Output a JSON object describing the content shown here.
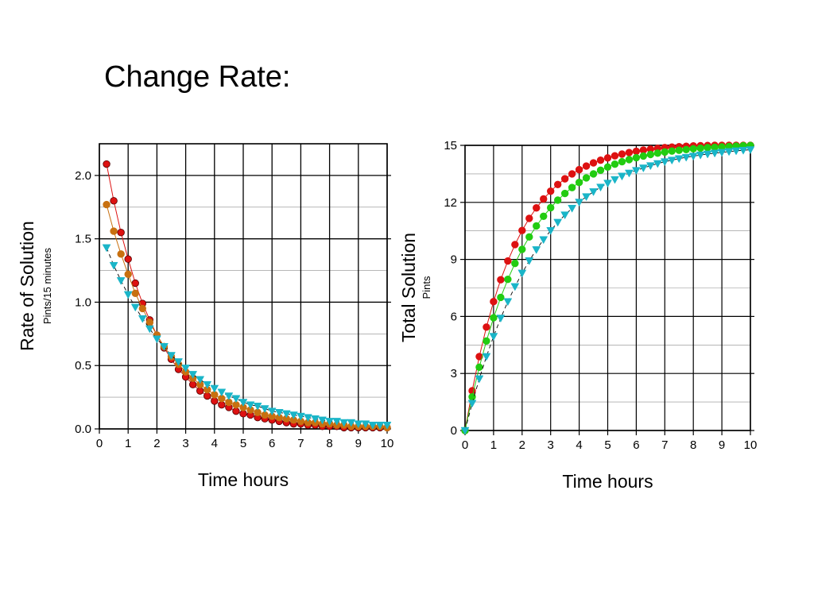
{
  "slide": {
    "title": "Change Rate:"
  },
  "chart_data": [
    {
      "type": "scatter",
      "title": "",
      "xlabel": "Time hours",
      "ylabel": "Rate of Solution",
      "ylabel_sub": "Pints/15 minutes",
      "xlim": [
        0,
        10
      ],
      "ylim": [
        0,
        2.25
      ],
      "xticks": [
        "0",
        "1",
        "2",
        "3",
        "4",
        "5",
        "6",
        "7",
        "8",
        "9",
        "10"
      ],
      "yticks": [
        "0.0",
        "0.5",
        "1.0",
        "1.5",
        "2.0"
      ],
      "ytick_values": [
        0,
        0.5,
        1.0,
        1.5,
        2.0
      ],
      "grid": true,
      "series": [
        {
          "color": "#dd1111",
          "marker": "circle",
          "line": "solid",
          "x": [
            0.25,
            0.5,
            0.75,
            1.0,
            1.25,
            1.5,
            1.75,
            2.0,
            2.25,
            2.5,
            2.75,
            3.0,
            3.25,
            3.5,
            3.75,
            4.0,
            4.25,
            4.5,
            4.75,
            5.0,
            5.25,
            5.5,
            5.75,
            6.0,
            6.25,
            6.5,
            6.75,
            7.0,
            7.25,
            7.5,
            7.75,
            8.0,
            8.25,
            8.5,
            8.75,
            9.0,
            9.25,
            9.5,
            9.75,
            10.0
          ],
          "values": [
            2.09,
            1.8,
            1.55,
            1.34,
            1.15,
            0.99,
            0.86,
            0.74,
            0.64,
            0.55,
            0.47,
            0.41,
            0.35,
            0.3,
            0.26,
            0.22,
            0.19,
            0.17,
            0.14,
            0.12,
            0.11,
            0.09,
            0.08,
            0.07,
            0.06,
            0.05,
            0.04,
            0.04,
            0.03,
            0.03,
            0.02,
            0.02,
            0.02,
            0.01,
            0.01,
            0.01,
            0.01,
            0.01,
            0.01,
            0.01
          ]
        },
        {
          "color": "#c87010",
          "marker": "circle",
          "line": "solid",
          "x": [
            0.25,
            0.5,
            0.75,
            1.0,
            1.25,
            1.5,
            1.75,
            2.0,
            2.25,
            2.5,
            2.75,
            3.0,
            3.25,
            3.5,
            3.75,
            4.0,
            4.25,
            4.5,
            4.75,
            5.0,
            5.25,
            5.5,
            5.75,
            6.0,
            6.25,
            6.5,
            6.75,
            7.0,
            7.25,
            7.5,
            7.75,
            8.0,
            8.25,
            8.5,
            8.75,
            9.0,
            9.25,
            9.5,
            9.75,
            10.0
          ],
          "values": [
            1.77,
            1.56,
            1.38,
            1.22,
            1.07,
            0.95,
            0.84,
            0.74,
            0.65,
            0.57,
            0.51,
            0.45,
            0.4,
            0.35,
            0.31,
            0.27,
            0.24,
            0.21,
            0.19,
            0.17,
            0.15,
            0.13,
            0.11,
            0.1,
            0.09,
            0.08,
            0.07,
            0.06,
            0.05,
            0.05,
            0.04,
            0.04,
            0.03,
            0.03,
            0.02,
            0.02,
            0.02,
            0.02,
            0.02,
            0.01
          ]
        },
        {
          "color": "#1ab5c8",
          "marker": "triangle-down",
          "line": "dashed",
          "x": [
            0.25,
            0.5,
            0.75,
            1.0,
            1.25,
            1.5,
            1.75,
            2.0,
            2.25,
            2.5,
            2.75,
            3.0,
            3.25,
            3.5,
            3.75,
            4.0,
            4.25,
            4.5,
            4.75,
            5.0,
            5.25,
            5.5,
            5.75,
            6.0,
            6.25,
            6.5,
            6.75,
            7.0,
            7.25,
            7.5,
            7.75,
            8.0,
            8.25,
            8.5,
            8.75,
            9.0,
            9.25,
            9.5,
            9.75,
            10.0
          ],
          "values": [
            1.43,
            1.29,
            1.17,
            1.06,
            0.96,
            0.87,
            0.79,
            0.71,
            0.65,
            0.58,
            0.53,
            0.48,
            0.43,
            0.39,
            0.35,
            0.32,
            0.29,
            0.26,
            0.24,
            0.21,
            0.19,
            0.18,
            0.16,
            0.14,
            0.13,
            0.12,
            0.11,
            0.1,
            0.09,
            0.08,
            0.07,
            0.06,
            0.06,
            0.05,
            0.05,
            0.04,
            0.04,
            0.03,
            0.03,
            0.03
          ]
        }
      ]
    },
    {
      "type": "scatter",
      "title": "",
      "xlabel": "Time hours",
      "ylabel": "Total Solution",
      "ylabel_sub": "Pints",
      "xlim": [
        0,
        10
      ],
      "ylim": [
        0,
        15
      ],
      "xticks": [
        "0",
        "1",
        "2",
        "3",
        "4",
        "5",
        "6",
        "7",
        "8",
        "9",
        "10"
      ],
      "yticks": [
        "0",
        "3",
        "6",
        "9",
        "12",
        "15"
      ],
      "ytick_values": [
        0,
        3,
        6,
        9,
        12,
        15
      ],
      "grid": true,
      "series": [
        {
          "color": "#dd1111",
          "marker": "circle",
          "line": "solid",
          "x": [
            0,
            0.25,
            0.5,
            0.75,
            1.0,
            1.25,
            1.5,
            1.75,
            2.0,
            2.25,
            2.5,
            2.75,
            3.0,
            3.25,
            3.5,
            3.75,
            4.0,
            4.25,
            4.5,
            4.75,
            5.0,
            5.25,
            5.5,
            5.75,
            6.0,
            6.25,
            6.5,
            6.75,
            7.0,
            7.25,
            7.5,
            7.75,
            8.0,
            8.25,
            8.5,
            8.75,
            9.0,
            9.25,
            9.5,
            9.75,
            10.0
          ],
          "values": [
            0,
            2.09,
            3.89,
            5.44,
            6.78,
            7.93,
            8.92,
            9.78,
            10.52,
            11.16,
            11.71,
            12.18,
            12.59,
            12.94,
            13.24,
            13.5,
            13.72,
            13.91,
            14.08,
            14.22,
            14.34,
            14.45,
            14.54,
            14.62,
            14.69,
            14.75,
            14.8,
            14.84,
            14.88,
            14.91,
            14.93,
            14.95,
            14.97,
            14.98,
            14.99,
            15.0,
            15.0,
            15.0,
            15.0,
            15.0,
            15.0
          ]
        },
        {
          "color": "#22cc11",
          "marker": "circle",
          "line": "solid",
          "x": [
            0,
            0.25,
            0.5,
            0.75,
            1.0,
            1.25,
            1.5,
            1.75,
            2.0,
            2.25,
            2.5,
            2.75,
            3.0,
            3.25,
            3.5,
            3.75,
            4.0,
            4.25,
            4.5,
            4.75,
            5.0,
            5.25,
            5.5,
            5.75,
            6.0,
            6.25,
            6.5,
            6.75,
            7.0,
            7.25,
            7.5,
            7.75,
            8.0,
            8.25,
            8.5,
            8.75,
            9.0,
            9.25,
            9.5,
            9.75,
            10.0
          ],
          "values": [
            0,
            1.77,
            3.33,
            4.71,
            5.93,
            7.0,
            7.95,
            8.79,
            9.53,
            10.18,
            10.76,
            11.27,
            11.72,
            12.12,
            12.47,
            12.78,
            13.05,
            13.29,
            13.5,
            13.69,
            13.86,
            14.01,
            14.14,
            14.25,
            14.35,
            14.44,
            14.52,
            14.59,
            14.65,
            14.7,
            14.74,
            14.78,
            14.82,
            14.85,
            14.88,
            14.9,
            14.92,
            14.94,
            14.96,
            14.98,
            14.99
          ]
        },
        {
          "color": "#1ab5c8",
          "marker": "triangle-down",
          "line": "dashed",
          "x": [
            0,
            0.25,
            0.5,
            0.75,
            1.0,
            1.25,
            1.5,
            1.75,
            2.0,
            2.25,
            2.5,
            2.75,
            3.0,
            3.25,
            3.5,
            3.75,
            4.0,
            4.25,
            4.5,
            4.75,
            5.0,
            5.25,
            5.5,
            5.75,
            6.0,
            6.25,
            6.5,
            6.75,
            7.0,
            7.25,
            7.5,
            7.75,
            8.0,
            8.25,
            8.5,
            8.75,
            9.0,
            9.25,
            9.5,
            9.75,
            10.0
          ],
          "values": [
            0,
            1.43,
            2.72,
            3.89,
            4.95,
            5.91,
            6.78,
            7.57,
            8.28,
            8.93,
            9.51,
            10.04,
            10.52,
            10.95,
            11.34,
            11.69,
            12.01,
            12.3,
            12.56,
            12.8,
            13.01,
            13.2,
            13.38,
            13.54,
            13.68,
            13.81,
            13.93,
            14.04,
            14.14,
            14.22,
            14.3,
            14.37,
            14.43,
            14.49,
            14.54,
            14.59,
            14.63,
            14.67,
            14.71,
            14.74,
            14.77
          ]
        }
      ]
    }
  ]
}
